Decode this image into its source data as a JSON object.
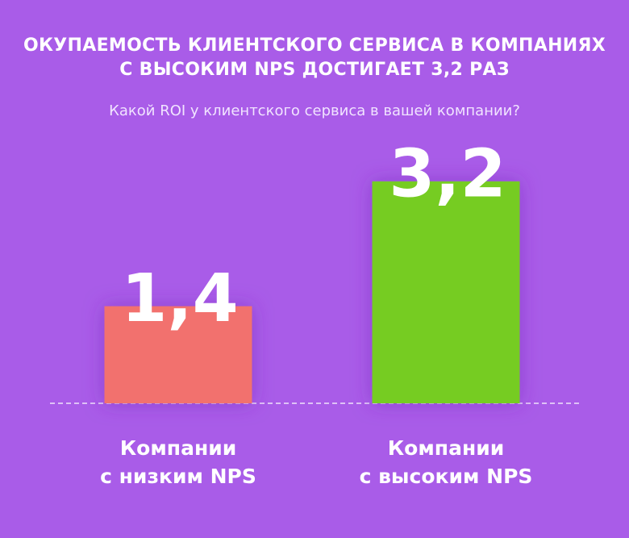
{
  "chart_data": {
    "type": "bar",
    "title": "ОКУПАЕМОСТЬ КЛИЕНТСКОГО СЕРВИСА В КОМПАНИЯХ\nС ВЫСОКИМ NPS ДОСТИГАЕТ 3,2 РАЗ",
    "subtitle": "Какой ROI у клиентского сервиса в вашей компании?",
    "categories": [
      "Компании\nс низким NPS",
      "Компании\nс высоким NPS"
    ],
    "values": [
      1.4,
      3.2
    ],
    "value_labels": [
      "1,4",
      "3,2"
    ],
    "colors": [
      "#f2716e",
      "#76cc22"
    ]
  }
}
